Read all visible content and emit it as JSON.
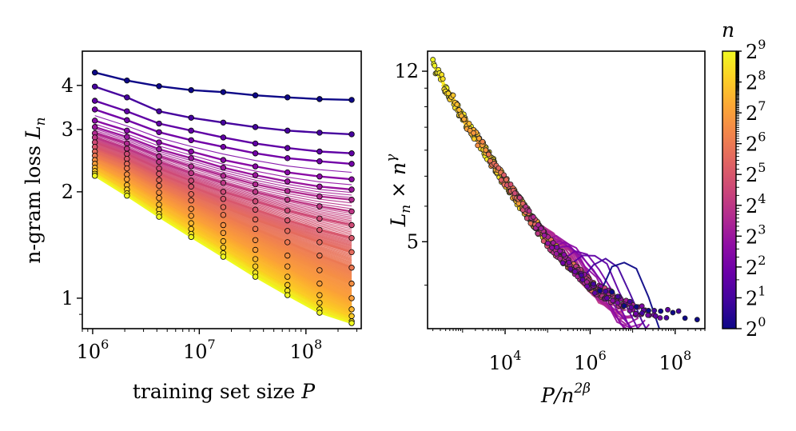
{
  "chart_data": [
    {
      "type": "line",
      "panel": "left",
      "xlabel_text": "training set size ",
      "xlabel_var": "P",
      "ylabel_text": "n-gram loss ",
      "ylabel_var": "L",
      "ylabel_sub": "n",
      "xscale": "log",
      "yscale": "log",
      "xlim": [
        800000,
        330000000
      ],
      "ylim": [
        0.82,
        5.0
      ],
      "x": [
        1048576,
        2097152,
        4194304,
        8388608,
        16777216,
        33554432,
        67108864,
        134217728,
        268435456
      ],
      "x_ticks": [
        {
          "value": 1000000,
          "base": "10",
          "exp": "6"
        },
        {
          "value": 10000000,
          "base": "10",
          "exp": "7"
        },
        {
          "value": 100000000,
          "base": "10",
          "exp": "8"
        }
      ],
      "y_ticks": [
        {
          "value": 1,
          "label": "1"
        },
        {
          "value": 2,
          "label": "2"
        },
        {
          "value": 3,
          "label": "3"
        },
        {
          "value": 4,
          "label": "4"
        }
      ],
      "series": [
        {
          "n": 1,
          "values": [
            4.35,
            4.13,
            3.98,
            3.88,
            3.83,
            3.75,
            3.7,
            3.66,
            3.64
          ]
        },
        {
          "n": 2,
          "values": [
            3.97,
            3.7,
            3.38,
            3.24,
            3.14,
            3.05,
            2.98,
            2.94,
            2.91
          ]
        },
        {
          "n": 3,
          "values": [
            3.62,
            3.38,
            3.12,
            2.98,
            2.85,
            2.74,
            2.66,
            2.6,
            2.57
          ]
        },
        {
          "n": 4,
          "values": [
            3.42,
            3.19,
            2.95,
            2.8,
            2.68,
            2.57,
            2.49,
            2.44,
            2.4
          ]
        },
        {
          "n": 6,
          "values": [
            3.18,
            2.98,
            2.76,
            2.6,
            2.46,
            2.36,
            2.27,
            2.21,
            2.17
          ]
        },
        {
          "n": 8,
          "values": [
            3.05,
            2.86,
            2.64,
            2.49,
            2.34,
            2.23,
            2.14,
            2.07,
            2.03
          ]
        },
        {
          "n": 12,
          "values": [
            2.93,
            2.74,
            2.52,
            2.36,
            2.22,
            2.1,
            2.01,
            1.94,
            1.9
          ]
        },
        {
          "n": 16,
          "values": [
            2.85,
            2.65,
            2.43,
            2.26,
            2.12,
            2.0,
            1.9,
            1.82,
            1.76
          ]
        },
        {
          "n": 24,
          "values": [
            2.76,
            2.56,
            2.33,
            2.15,
            2.0,
            1.88,
            1.77,
            1.68,
            1.61
          ]
        },
        {
          "n": 32,
          "values": [
            2.68,
            2.48,
            2.25,
            2.07,
            1.91,
            1.78,
            1.66,
            1.56,
            1.48
          ]
        },
        {
          "n": 48,
          "values": [
            2.6,
            2.4,
            2.16,
            1.97,
            1.81,
            1.67,
            1.55,
            1.44,
            1.35
          ]
        },
        {
          "n": 64,
          "values": [
            2.53,
            2.33,
            2.08,
            1.89,
            1.72,
            1.57,
            1.44,
            1.32,
            1.22
          ]
        },
        {
          "n": 96,
          "values": [
            2.46,
            2.24,
            1.99,
            1.79,
            1.61,
            1.46,
            1.32,
            1.2,
            1.1
          ]
        },
        {
          "n": 128,
          "values": [
            2.4,
            2.17,
            1.92,
            1.71,
            1.53,
            1.37,
            1.23,
            1.1,
            1.0
          ]
        },
        {
          "n": 192,
          "values": [
            2.34,
            2.09,
            1.84,
            1.63,
            1.45,
            1.29,
            1.15,
            1.02,
            0.93
          ]
        },
        {
          "n": 256,
          "values": [
            2.29,
            2.03,
            1.78,
            1.57,
            1.39,
            1.23,
            1.09,
            0.97,
            0.89
          ]
        },
        {
          "n": 384,
          "values": [
            2.25,
            1.98,
            1.73,
            1.52,
            1.34,
            1.18,
            1.05,
            0.93,
            0.86
          ]
        },
        {
          "n": 512,
          "values": [
            2.22,
            1.95,
            1.7,
            1.49,
            1.31,
            1.15,
            1.02,
            0.91,
            0.85
          ]
        }
      ]
    },
    {
      "type": "scatter",
      "panel": "right",
      "xlabel_var": "P/n",
      "xlabel_exp": "2β",
      "ylabel_var": "L",
      "ylabel_sub": "n",
      "ylabel_mid": " × n",
      "ylabel_exp": "γ",
      "xscale": "log",
      "yscale": "log",
      "xlim": [
        150,
        500000000
      ],
      "ylim": [
        3.2,
        13.3
      ],
      "x_ticks": [
        {
          "value": 10000,
          "base": "10",
          "exp": "4"
        },
        {
          "value": 1000000,
          "base": "10",
          "exp": "6"
        },
        {
          "value": 100000000,
          "base": "10",
          "exp": "8"
        }
      ],
      "y_ticks": [
        {
          "value": 5,
          "label": "5"
        },
        {
          "value": 12,
          "label": "12"
        }
      ],
      "collapse_curve": {
        "x": [
          200,
          1000,
          10000,
          100000,
          1000000,
          10000000,
          300000000
        ],
        "y": [
          12.4,
          9.5,
          6.8,
          5.0,
          4.0,
          3.55,
          3.35
        ]
      }
    }
  ],
  "colorbar": {
    "title": "n",
    "ticks": [
      {
        "value": 0,
        "base": "2",
        "exp": "0"
      },
      {
        "value": 1,
        "base": "2",
        "exp": "1"
      },
      {
        "value": 2,
        "base": "2",
        "exp": "2"
      },
      {
        "value": 3,
        "base": "2",
        "exp": "3"
      },
      {
        "value": 4,
        "base": "2",
        "exp": "4"
      },
      {
        "value": 5,
        "base": "2",
        "exp": "5"
      },
      {
        "value": 6,
        "base": "2",
        "exp": "6"
      },
      {
        "value": 7,
        "base": "2",
        "exp": "7"
      },
      {
        "value": 8,
        "base": "2",
        "exp": "8"
      },
      {
        "value": 9,
        "base": "2",
        "exp": "9"
      }
    ],
    "colormap": [
      "#0d0887",
      "#41049d",
      "#6a00a8",
      "#8f0da4",
      "#b12a90",
      "#cc4778",
      "#e16462",
      "#f2844b",
      "#fca636",
      "#fcce25",
      "#f0f921"
    ]
  }
}
